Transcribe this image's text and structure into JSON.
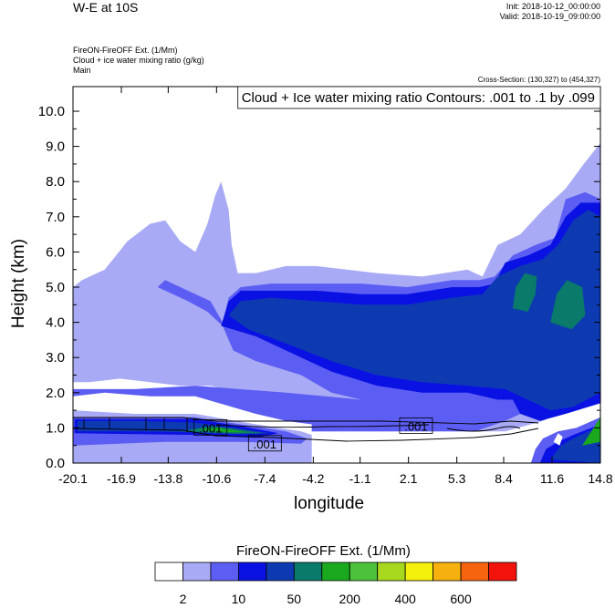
{
  "header": {
    "title": "W-E at 10S",
    "init": "Init: 2018-10-12_00:00:00",
    "valid": "Valid: 2018-10-19_09:00:00",
    "field1": "FireON-FireOFF Ext.   (1/Mm)",
    "field2": "Cloud + ice water mixing ratio   (g/kg)",
    "field3": "Main",
    "cross_section": "Cross-Section: (130,327) to (454,327)"
  },
  "colors": {
    "levels": [
      "#ffffff",
      "#a9aaf5",
      "#5c5ef3",
      "#0a12e3",
      "#0e3ab1",
      "#0a7a6a",
      "#1aa81e",
      "#4cc23a",
      "#a8d81e",
      "#f3f10c",
      "#f7b10e",
      "#f7640f",
      "#f3130d"
    ]
  },
  "chart_data": {
    "type": "heatmap",
    "title": "Cloud + Ice water mixing ratio Contours: .001 to .1 by .099",
    "xlabel": "longitude",
    "ylabel": "Height (km)",
    "xlim": [
      -20.1,
      14.8
    ],
    "ylim": [
      0.0,
      10.7
    ],
    "x_ticks": [
      "-20.1",
      "-16.9",
      "-13.8",
      "-10.6",
      "-7.4",
      "-4.2",
      "-1.1",
      "2.1",
      "5.3",
      "8.4",
      "11.6",
      "14.8"
    ],
    "y_ticks": [
      "0.0",
      "1.0",
      "2.0",
      "3.0",
      "4.0",
      "5.0",
      "6.0",
      "7.0",
      "8.0",
      "9.0",
      "10.0"
    ],
    "colorbar": {
      "title": "FireON-FireOFF Ext.  (1/Mm)",
      "labels": [
        "2",
        "10",
        "50",
        "200",
        "400",
        "600"
      ]
    },
    "contour_labels": [
      ".001",
      ".001",
      ".001"
    ],
    "fill_regions": [
      {
        "level": 1,
        "points": [
          [
            -20.1,
            5.0
          ],
          [
            -19.5,
            5.2
          ],
          [
            -18.0,
            5.5
          ],
          [
            -16.5,
            6.3
          ],
          [
            -15.0,
            6.8
          ],
          [
            -14.0,
            6.9
          ],
          [
            -13.0,
            6.3
          ],
          [
            -12.0,
            6.0
          ],
          [
            -11.2,
            6.8
          ],
          [
            -10.7,
            7.6
          ],
          [
            -10.3,
            8.0
          ],
          [
            -9.8,
            7.2
          ],
          [
            -9.6,
            6.2
          ],
          [
            -9.2,
            5.4
          ],
          [
            -8.0,
            5.4
          ],
          [
            -6.0,
            5.6
          ],
          [
            -4.0,
            5.6
          ],
          [
            -2.0,
            5.5
          ],
          [
            0.0,
            5.4
          ],
          [
            3.0,
            5.3
          ],
          [
            6.0,
            5.5
          ],
          [
            7.0,
            5.3
          ],
          [
            8.0,
            6.2
          ],
          [
            9.5,
            6.5
          ],
          [
            11.0,
            7.2
          ],
          [
            12.5,
            7.8
          ],
          [
            13.7,
            8.5
          ],
          [
            14.8,
            9.1
          ],
          [
            14.8,
            1.8
          ],
          [
            13.0,
            1.6
          ],
          [
            11.0,
            1.2
          ],
          [
            8.5,
            0.9
          ],
          [
            -4.3,
            0.9
          ],
          [
            -4.3,
            1.3
          ],
          [
            -6.0,
            1.6
          ],
          [
            -9.0,
            2.0
          ],
          [
            -11.0,
            2.2
          ],
          [
            -13.0,
            2.2
          ],
          [
            -15.0,
            2.3
          ],
          [
            -17.0,
            2.4
          ],
          [
            -19.0,
            2.3
          ],
          [
            -20.1,
            2.3
          ]
        ]
      },
      {
        "level": 2,
        "points": [
          [
            -20.1,
            1.9
          ],
          [
            -18.0,
            2.0
          ],
          [
            -15.0,
            1.9
          ],
          [
            -12.0,
            1.9
          ],
          [
            -8.0,
            1.4
          ],
          [
            -6.0,
            1.2
          ],
          [
            -4.3,
            1.1
          ],
          [
            -4.3,
            0.9
          ],
          [
            6.5,
            0.9
          ],
          [
            8.5,
            1.2
          ],
          [
            10.0,
            1.5
          ],
          [
            12.0,
            1.6
          ],
          [
            14.8,
            2.0
          ],
          [
            14.8,
            7.5
          ],
          [
            13.8,
            7.7
          ],
          [
            12.5,
            7.5
          ],
          [
            11.8,
            6.4
          ],
          [
            10.5,
            6.2
          ],
          [
            9.0,
            5.9
          ],
          [
            7.8,
            5.3
          ],
          [
            6.8,
            5.2
          ],
          [
            5.0,
            5.2
          ],
          [
            2.0,
            5.0
          ],
          [
            -1.0,
            5.1
          ],
          [
            -4.0,
            5.1
          ],
          [
            -7.0,
            5.1
          ],
          [
            -9.0,
            5.0
          ],
          [
            -9.8,
            4.7
          ],
          [
            -10.2,
            4.0
          ],
          [
            -11.0,
            4.6
          ],
          [
            -13.0,
            5.0
          ],
          [
            -14.0,
            5.2
          ],
          [
            -14.5,
            5.0
          ],
          [
            -12.5,
            4.6
          ],
          [
            -11.2,
            4.3
          ],
          [
            -10.2,
            3.9
          ],
          [
            -9.5,
            3.2
          ],
          [
            -8.0,
            2.9
          ],
          [
            -5.0,
            2.5
          ],
          [
            -3.0,
            2.0
          ],
          [
            -1.0,
            1.8
          ],
          [
            -6.0,
            2.0
          ],
          [
            -12.0,
            2.2
          ],
          [
            -16.0,
            2.1
          ],
          [
            -20.1,
            2.1
          ]
        ]
      },
      {
        "level": 3,
        "points": [
          [
            -10.3,
            3.9
          ],
          [
            -9.8,
            4.6
          ],
          [
            -9.0,
            4.9
          ],
          [
            -7.0,
            4.9
          ],
          [
            -4.0,
            4.9
          ],
          [
            -1.0,
            4.8
          ],
          [
            2.0,
            4.8
          ],
          [
            5.0,
            5.0
          ],
          [
            6.8,
            5.0
          ],
          [
            7.8,
            5.1
          ],
          [
            8.5,
            5.7
          ],
          [
            10.0,
            5.9
          ],
          [
            11.5,
            6.2
          ],
          [
            12.5,
            7.0
          ],
          [
            13.5,
            7.4
          ],
          [
            14.8,
            7.4
          ],
          [
            14.8,
            1.7
          ],
          [
            12.5,
            1.4
          ],
          [
            10.8,
            1.2
          ],
          [
            9.5,
            1.4
          ],
          [
            9.0,
            1.8
          ],
          [
            8.0,
            1.8
          ],
          [
            6.0,
            2.0
          ],
          [
            3.0,
            2.0
          ],
          [
            0.0,
            2.2
          ],
          [
            -3.0,
            2.6
          ],
          [
            -6.0,
            3.2
          ],
          [
            -8.0,
            3.6
          ]
        ]
      },
      {
        "level": 4,
        "points": [
          [
            -9.8,
            4.2
          ],
          [
            -9.0,
            4.6
          ],
          [
            -7.0,
            4.7
          ],
          [
            -4.0,
            4.6
          ],
          [
            -1.0,
            4.5
          ],
          [
            2.0,
            4.5
          ],
          [
            5.0,
            4.7
          ],
          [
            7.0,
            4.8
          ],
          [
            8.0,
            5.3
          ],
          [
            9.5,
            5.6
          ],
          [
            11.0,
            5.8
          ],
          [
            12.0,
            6.2
          ],
          [
            13.0,
            6.9
          ],
          [
            14.0,
            7.2
          ],
          [
            14.8,
            7.0
          ],
          [
            14.8,
            2.0
          ],
          [
            13.0,
            1.6
          ],
          [
            11.5,
            1.5
          ],
          [
            10.0,
            1.8
          ],
          [
            8.5,
            2.1
          ],
          [
            6.0,
            2.2
          ],
          [
            3.0,
            2.3
          ],
          [
            0.0,
            2.5
          ],
          [
            -3.0,
            2.9
          ],
          [
            -6.0,
            3.4
          ],
          [
            -8.5,
            3.8
          ]
        ]
      },
      {
        "level": 6,
        "points": [
          [
            9.2,
            4.7
          ],
          [
            9.4,
            5.1
          ],
          [
            9.9,
            5.2
          ],
          [
            10.3,
            5.0
          ],
          [
            10.1,
            4.6
          ],
          [
            9.6,
            4.5
          ]
        ]
      },
      {
        "level": 6,
        "points": [
          [
            12.2,
            4.2
          ],
          [
            12.4,
            4.8
          ],
          [
            12.8,
            5.1
          ],
          [
            13.3,
            4.9
          ],
          [
            13.4,
            4.4
          ],
          [
            12.9,
            4.1
          ]
        ]
      },
      {
        "level": 5,
        "points": [
          [
            9.0,
            4.4
          ],
          [
            9.2,
            5.0
          ],
          [
            9.8,
            5.4
          ],
          [
            10.6,
            5.3
          ],
          [
            10.5,
            4.8
          ],
          [
            10.0,
            4.3
          ]
        ]
      },
      {
        "level": 5,
        "points": [
          [
            11.5,
            4.0
          ],
          [
            11.9,
            4.8
          ],
          [
            12.6,
            5.2
          ],
          [
            13.6,
            5.0
          ],
          [
            13.8,
            4.2
          ],
          [
            12.9,
            3.8
          ]
        ]
      },
      {
        "level": 1,
        "points": [
          [
            -20.1,
            0.0
          ],
          [
            -20.1,
            1.5
          ],
          [
            -16.0,
            1.4
          ],
          [
            -12.0,
            1.4
          ],
          [
            -8.0,
            1.1
          ],
          [
            -5.0,
            0.9
          ],
          [
            -4.3,
            0.8
          ],
          [
            -4.3,
            0.0
          ]
        ]
      },
      {
        "level": 2,
        "points": [
          [
            -20.1,
            0.5
          ],
          [
            -20.1,
            1.3
          ],
          [
            -16.0,
            1.3
          ],
          [
            -12.0,
            1.3
          ],
          [
            -9.0,
            1.1
          ],
          [
            -6.0,
            0.9
          ],
          [
            -4.6,
            0.7
          ],
          [
            -5.0,
            0.55
          ],
          [
            -9.0,
            0.6
          ],
          [
            -14.0,
            0.6
          ]
        ]
      },
      {
        "level": 3,
        "points": [
          [
            -20.0,
            0.85
          ],
          [
            -20.0,
            1.25
          ],
          [
            -16.0,
            1.25
          ],
          [
            -12.0,
            1.25
          ],
          [
            -9.0,
            1.05
          ],
          [
            -6.5,
            0.85
          ],
          [
            -8.0,
            0.72
          ],
          [
            -12.0,
            0.8
          ],
          [
            -16.0,
            0.82
          ]
        ]
      },
      {
        "level": 4,
        "points": [
          [
            -19.8,
            0.9
          ],
          [
            -19.8,
            1.2
          ],
          [
            -16.0,
            1.2
          ],
          [
            -12.0,
            1.15
          ],
          [
            -9.5,
            1.0
          ],
          [
            -7.0,
            0.85
          ],
          [
            -9.0,
            0.82
          ],
          [
            -13.0,
            0.88
          ],
          [
            -16.0,
            0.9
          ]
        ]
      },
      {
        "level": 5,
        "points": [
          [
            -13.0,
            0.9
          ],
          [
            -11.0,
            1.05
          ],
          [
            -9.5,
            0.98
          ],
          [
            -7.5,
            0.85
          ],
          [
            -9.5,
            0.84
          ]
        ]
      },
      {
        "level": 6,
        "points": [
          [
            -12.0,
            0.95
          ],
          [
            -10.5,
            1.0
          ],
          [
            -8.5,
            0.87
          ],
          [
            -10.0,
            0.88
          ]
        ]
      },
      {
        "level": 2,
        "points": [
          [
            10.2,
            0.0
          ],
          [
            10.5,
            0.4
          ],
          [
            11.0,
            0.7
          ],
          [
            12.0,
            0.9
          ],
          [
            13.2,
            1.0
          ],
          [
            14.8,
            1.3
          ],
          [
            14.8,
            0.0
          ]
        ]
      },
      {
        "level": 3,
        "points": [
          [
            10.8,
            0.0
          ],
          [
            11.2,
            0.4
          ],
          [
            12.0,
            0.6
          ],
          [
            13.0,
            0.8
          ],
          [
            14.8,
            1.1
          ],
          [
            14.8,
            0.0
          ]
        ]
      },
      {
        "level": 4,
        "points": [
          [
            11.5,
            0.1
          ],
          [
            12.2,
            0.5
          ],
          [
            13.0,
            0.7
          ],
          [
            14.0,
            0.9
          ],
          [
            14.8,
            1.0
          ],
          [
            14.8,
            0.0
          ]
        ]
      },
      {
        "level": 6,
        "points": [
          [
            13.6,
            0.5
          ],
          [
            14.2,
            0.9
          ],
          [
            14.8,
            1.3
          ],
          [
            14.8,
            0.6
          ]
        ]
      },
      {
        "level": 0,
        "points": [
          [
            11.7,
            0.6
          ],
          [
            12.0,
            0.85
          ],
          [
            12.3,
            0.75
          ],
          [
            12.1,
            0.5
          ]
        ]
      }
    ]
  }
}
